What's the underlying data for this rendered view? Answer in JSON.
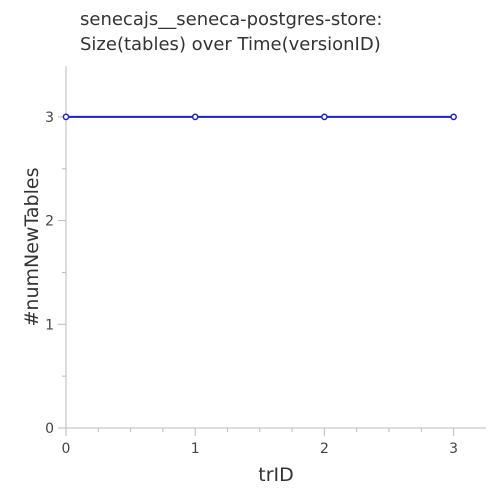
{
  "chart_data": {
    "type": "line",
    "title": [
      "senecajs__seneca-postgres-store:",
      "Size(tables) over Time(versionID)"
    ],
    "xlabel": "trID",
    "ylabel": "#numNewTables",
    "x": [
      0,
      1,
      2,
      3
    ],
    "xticks": [
      0,
      1,
      2,
      3
    ],
    "yticks": [
      0,
      1,
      2,
      3
    ],
    "xlim": [
      0,
      3.25
    ],
    "ylim": [
      0,
      3.5
    ],
    "grid": false,
    "series": [
      {
        "values": [
          3,
          3,
          3,
          3
        ],
        "color": "#1f1fcc"
      }
    ]
  }
}
